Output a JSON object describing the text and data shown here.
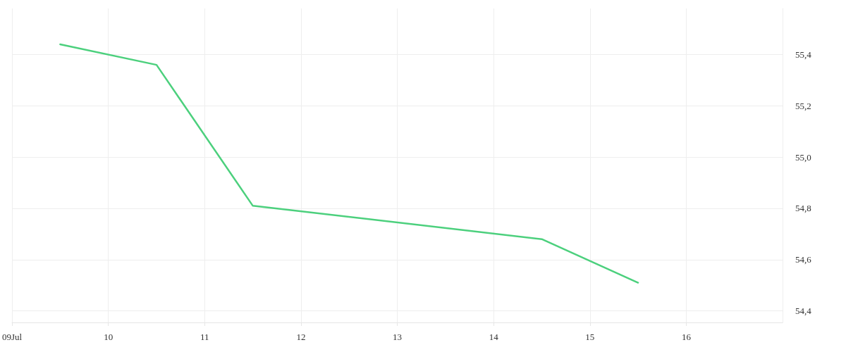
{
  "chart_data": {
    "type": "line",
    "x": [
      "--07-09T12:00",
      "--07-10T12:00",
      "--07-11T12:00",
      "--07-14T12:00",
      "--07-15T12:00"
    ],
    "series": [
      {
        "color": "#4cd07d",
        "values": [
          55.44,
          55.36,
          54.81,
          54.68,
          54.51
        ]
      }
    ],
    "xlim": [
      "--07-09",
      "--07-17"
    ],
    "xticks": [
      {
        "value": "--07-09",
        "label": "09Jul"
      },
      {
        "value": "--07-10",
        "label": "10"
      },
      {
        "value": "--07-11",
        "label": "11"
      },
      {
        "value": "--07-12",
        "label": "12"
      },
      {
        "value": "--07-13",
        "label": "13"
      },
      {
        "value": "--07-14",
        "label": "14"
      },
      {
        "value": "--07-15",
        "label": "15"
      },
      {
        "value": "--07-16",
        "label": "16"
      }
    ],
    "ylim": [
      54.355,
      55.58
    ],
    "yticks": [
      {
        "value": 54.4,
        "label": "54,4"
      },
      {
        "value": 54.6,
        "label": "54,6"
      },
      {
        "value": 54.8,
        "label": "54,8"
      },
      {
        "value": 55.0,
        "label": "55,0"
      },
      {
        "value": 55.2,
        "label": "55,2"
      },
      {
        "value": 55.4,
        "label": "55,4"
      }
    ],
    "grid": true,
    "marker": "none",
    "line_style": "solid"
  }
}
